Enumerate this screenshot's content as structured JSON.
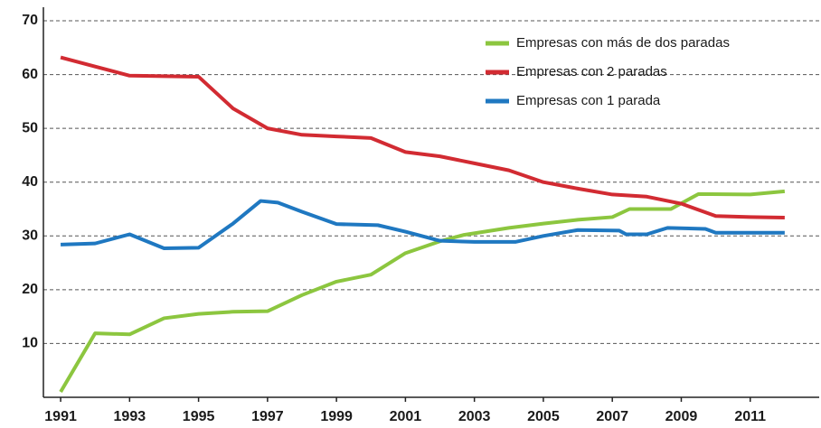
{
  "chart_data": {
    "type": "line",
    "xlim": [
      1990.5,
      2013
    ],
    "xticks": [
      1991,
      1993,
      1995,
      1997,
      1999,
      2001,
      2003,
      2005,
      2007,
      2009,
      2011
    ],
    "ylim": [
      0,
      70
    ],
    "yticks": [
      10,
      20,
      30,
      40,
      50,
      60,
      70
    ],
    "grid": true,
    "legend": "upper right",
    "series": [
      {
        "name": "Empresas con más de dos paradas",
        "color": "#8cc63f",
        "x": [
          1991,
          1992,
          1993,
          1994,
          1995,
          1996,
          1997,
          1998,
          1999,
          2000,
          2001,
          2002,
          2002.7,
          2004,
          2005,
          2006,
          2007,
          2007.5,
          2008.7,
          2009.5,
          2011,
          2012
        ],
        "values": [
          1,
          11.9,
          11.7,
          14.7,
          15.5,
          15.9,
          16,
          19,
          21.5,
          22.8,
          26.8,
          29,
          30.2,
          31.5,
          32.3,
          33,
          33.5,
          35,
          35,
          37.8,
          37.7,
          38.3
        ]
      },
      {
        "name": "Empresas con 2 paradas",
        "color": "#d22b32",
        "x": [
          1991,
          1992,
          1993,
          1994,
          1995,
          1996,
          1997,
          1998,
          1999,
          2000,
          2001,
          2002,
          2003,
          2004,
          2005,
          2006,
          2007,
          2008,
          2009,
          2010,
          2011,
          2012
        ],
        "values": [
          63.2,
          61.5,
          59.8,
          59.7,
          59.6,
          53.7,
          50,
          48.8,
          48.5,
          48.2,
          45.6,
          44.8,
          43.5,
          42.2,
          40,
          38.8,
          37.7,
          37.3,
          36,
          33.7,
          33.5,
          33.4
        ]
      },
      {
        "name": "Empresas con 1 parada",
        "color": "#1f78c1",
        "x": [
          1991,
          1992,
          1993,
          1994,
          1995,
          1996,
          1996.8,
          1997.3,
          1998,
          1999,
          2000.2,
          2001,
          2002,
          2003,
          2004.2,
          2005,
          2006,
          2007.2,
          2007.4,
          2008,
          2008.6,
          2009.7,
          2010,
          2012
        ],
        "values": [
          28.4,
          28.6,
          30.3,
          27.7,
          27.8,
          32.3,
          36.5,
          36.2,
          34.5,
          32.2,
          32,
          30.8,
          29.1,
          28.9,
          28.9,
          30,
          31.1,
          31,
          30.3,
          30.3,
          31.5,
          31.3,
          30.6,
          30.6
        ]
      }
    ]
  }
}
